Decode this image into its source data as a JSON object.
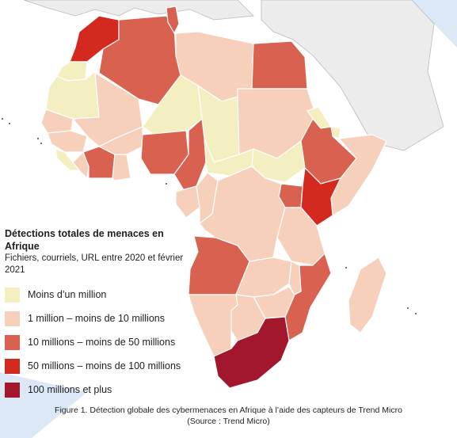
{
  "colors": {
    "background_land": "#ececec",
    "border": "#ffffff",
    "sea": "#ffffff",
    "deco": "#dce8f5"
  },
  "legend": {
    "title": "Détections totales de menaces en Afrique",
    "subtitle": "Fichiers, courriels, URL entre 2020 et février 2021",
    "categories": [
      {
        "id": "c1",
        "label": "Moins d’un million",
        "color": "#f4efc0"
      },
      {
        "id": "c2",
        "label": "1 million – moins de 10 millions",
        "color": "#f7d0bc"
      },
      {
        "id": "c3",
        "label": "10 millions – moins de 50 millions",
        "color": "#d9614f"
      },
      {
        "id": "c4",
        "label": "50 millions – moins de 100 millions",
        "color": "#d4291f"
      },
      {
        "id": "c5",
        "label": "100 millions et plus",
        "color": "#a3172c"
      }
    ]
  },
  "caption": {
    "line1": "Figure 1. Détection globale des cybermenaces en Afrique à l’aide des capteurs de Trend Micro",
    "line2": "(Source : Trend Micro)"
  },
  "regions": [
    {
      "name": "Maroc",
      "category": "c4"
    },
    {
      "name": "Sahara occidental",
      "category": "c1"
    },
    {
      "name": "Algérie",
      "category": "c3"
    },
    {
      "name": "Tunisie",
      "category": "c3"
    },
    {
      "name": "Libye",
      "category": "c2"
    },
    {
      "name": "Égypte",
      "category": "c3"
    },
    {
      "name": "Mauritanie",
      "category": "c1"
    },
    {
      "name": "Mali",
      "category": "c2"
    },
    {
      "name": "Niger",
      "category": "c1"
    },
    {
      "name": "Tchad",
      "category": "c1"
    },
    {
      "name": "Soudan",
      "category": "c2"
    },
    {
      "name": "Sénégal",
      "category": "c2"
    },
    {
      "name": "Guinée",
      "category": "c2"
    },
    {
      "name": "Sierra Leone",
      "category": "c1"
    },
    {
      "name": "Libéria",
      "category": "c2"
    },
    {
      "name": "Côte d'Ivoire",
      "category": "c3"
    },
    {
      "name": "Burkina Faso",
      "category": "c2"
    },
    {
      "name": "Ghana",
      "category": "c2"
    },
    {
      "name": "Nigeria",
      "category": "c3"
    },
    {
      "name": "Cameroun",
      "category": "c3"
    },
    {
      "name": "République centrafricaine",
      "category": "c1"
    },
    {
      "name": "Soudan du Sud",
      "category": "c1"
    },
    {
      "name": "Éthiopie",
      "category": "c3"
    },
    {
      "name": "Érythrée",
      "category": "c1"
    },
    {
      "name": "Djibouti",
      "category": "c1"
    },
    {
      "name": "Somalie",
      "category": "c2"
    },
    {
      "name": "Kenya",
      "category": "c4"
    },
    {
      "name": "Ouganda",
      "category": "c3"
    },
    {
      "name": "Gabon",
      "category": "c2"
    },
    {
      "name": "Congo",
      "category": "c2"
    },
    {
      "name": "RD Congo",
      "category": "c2"
    },
    {
      "name": "Tanzanie",
      "category": "c2"
    },
    {
      "name": "Angola",
      "category": "c3"
    },
    {
      "name": "Zambie",
      "category": "c2"
    },
    {
      "name": "Malawi",
      "category": "c2"
    },
    {
      "name": "Mozambique",
      "category": "c3"
    },
    {
      "name": "Zimbabwe",
      "category": "c2"
    },
    {
      "name": "Namibie",
      "category": "c2"
    },
    {
      "name": "Botswana",
      "category": "c2"
    },
    {
      "name": "Afrique du Sud",
      "category": "c5"
    },
    {
      "name": "Madagascar",
      "category": "c2"
    }
  ]
}
